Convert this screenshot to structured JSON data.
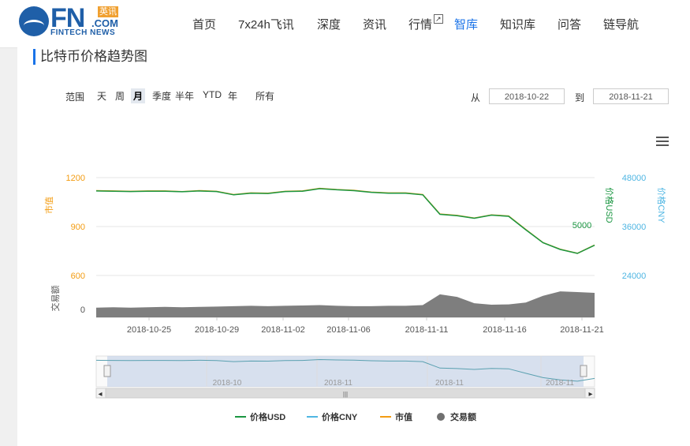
{
  "header": {
    "logo_text": "FN",
    "logo_com": ".COM",
    "logo_cn": "英讯",
    "logo_sub": "FINTECH NEWS",
    "nav": [
      {
        "label": "首页"
      },
      {
        "label": "7x24h飞讯"
      },
      {
        "label": "深度"
      },
      {
        "label": "资讯"
      },
      {
        "label": "行情",
        "ext": "↗"
      },
      {
        "label": "智库",
        "active": true
      },
      {
        "label": "知识库"
      },
      {
        "label": "问答"
      },
      {
        "label": "链导航"
      }
    ]
  },
  "page": {
    "title": "比特币价格趋势图"
  },
  "controls": {
    "range_label": "范围",
    "ranges": [
      "天",
      "周",
      "月",
      "季度",
      "半年",
      "YTD",
      "年",
      "所有"
    ],
    "active_range": "月",
    "from_label": "从",
    "from_date": "2018-10-22",
    "to_label": "到",
    "to_date": "2018-11-21"
  },
  "colors": {
    "usd": "#1a9641",
    "cny": "#4fb6e3",
    "cap": "#f39c12",
    "volume": "#707070",
    "nav_blue": "#1a73e8"
  },
  "chart_data": {
    "type": "line",
    "x_ticks": [
      "2018-10-25",
      "2018-10-29",
      "2018-11-02",
      "2018-11-06",
      "2018-11-11",
      "2018-11-16",
      "2018-11-21"
    ],
    "left_axis": {
      "label": "市值",
      "ticks": [
        600,
        900,
        1200
      ]
    },
    "volume_axis": {
      "label": "交易额",
      "ticks": [
        0
      ]
    },
    "right_axis_usd": {
      "label": "价格USD",
      "ticks": [
        5000
      ]
    },
    "right_axis_cny": {
      "label": "价格CNY",
      "ticks": [
        24000,
        36000,
        48000
      ]
    },
    "navigator_ticks": [
      "2018-10",
      "2018-11",
      "2018-11",
      "2018-11"
    ],
    "series": [
      {
        "name": "价格USD",
        "key": "usd",
        "values": [
          6480,
          6470,
          6460,
          6470,
          6470,
          6450,
          6480,
          6460,
          6340,
          6400,
          6390,
          6460,
          6470,
          6560,
          6520,
          6490,
          6430,
          6400,
          6400,
          6340,
          5650,
          5600,
          5510,
          5620,
          5580,
          5100,
          4640,
          4400,
          4260,
          4550
        ]
      },
      {
        "name": "价格CNY",
        "key": "cny",
        "values": []
      },
      {
        "name": "市值",
        "key": "cap",
        "values": [
          1120,
          1118,
          1116,
          1118,
          1118,
          1114,
          1120,
          1116,
          1096,
          1106,
          1104,
          1116,
          1118,
          1134,
          1127,
          1122,
          1111,
          1106,
          1106,
          1096,
          977,
          968,
          952,
          971,
          965,
          882,
          802,
          761,
          736,
          787
        ]
      },
      {
        "name": "交易额",
        "key": "vol",
        "values": [
          0.26,
          0.27,
          0.26,
          0.27,
          0.28,
          0.27,
          0.28,
          0.29,
          0.3,
          0.31,
          0.3,
          0.31,
          0.32,
          0.33,
          0.31,
          0.3,
          0.3,
          0.31,
          0.31,
          0.33,
          0.62,
          0.55,
          0.38,
          0.34,
          0.35,
          0.4,
          0.58,
          0.7,
          0.68,
          0.66
        ]
      }
    ],
    "legend": [
      "价格USD",
      "价格CNY",
      "市值",
      "交易额"
    ],
    "legend_position": "bottom"
  }
}
